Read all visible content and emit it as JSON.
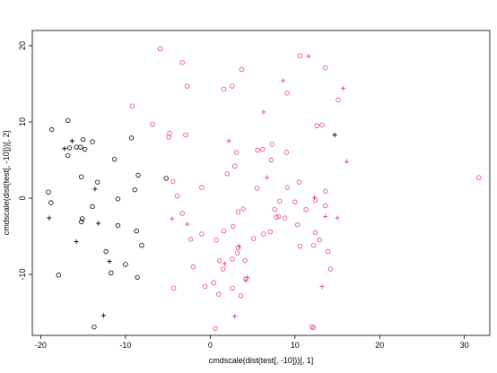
{
  "chart_data": {
    "type": "scatter",
    "xlabel": "cmdscale(dist(test[, -10]))[, 1]",
    "ylabel": "cmdscale(dist(test[, -10]))[, 2]",
    "xlim": [
      -21,
      33
    ],
    "ylim": [
      -18,
      22
    ],
    "xticks": [
      -20,
      -10,
      0,
      10,
      20,
      30
    ],
    "yticks": [
      -10,
      0,
      10,
      20
    ],
    "grid": false,
    "series": [
      {
        "color": "#000000",
        "marker": "circle",
        "points": [
          [
            -16.8,
            10.2
          ],
          [
            -18.7,
            9.0
          ],
          [
            -15.0,
            7.7
          ],
          [
            -13.9,
            7.4
          ],
          [
            -16.6,
            6.6
          ],
          [
            -15.8,
            6.7
          ],
          [
            -15.3,
            6.7
          ],
          [
            -14.8,
            6.4
          ],
          [
            -16.8,
            5.6
          ],
          [
            -11.3,
            5.1
          ],
          [
            -9.3,
            7.9
          ],
          [
            -8.5,
            3.0
          ],
          [
            -5.2,
            2.6
          ],
          [
            -15.2,
            2.8
          ],
          [
            -13.3,
            2.1
          ],
          [
            -8.9,
            1.1
          ],
          [
            -19.1,
            0.8
          ],
          [
            -10.9,
            -0.1
          ],
          [
            -18.8,
            -0.6
          ],
          [
            -13.9,
            -1.1
          ],
          [
            -15.1,
            -2.7
          ],
          [
            -15.2,
            -3.1
          ],
          [
            -10.9,
            -3.6
          ],
          [
            -8.7,
            -4.3
          ],
          [
            -8.1,
            -6.2
          ],
          [
            -12.3,
            -7.0
          ],
          [
            -10.0,
            -8.7
          ],
          [
            -11.7,
            -9.8
          ],
          [
            -17.9,
            -10.1
          ],
          [
            -8.6,
            -10.4
          ],
          [
            -13.7,
            -16.9
          ]
        ]
      },
      {
        "color": "#000000",
        "marker": "plus",
        "points": [
          [
            -16.3,
            7.5
          ],
          [
            -17.2,
            6.5
          ],
          [
            -13.6,
            1.2
          ],
          [
            -19.0,
            -2.6
          ],
          [
            -13.2,
            -3.3
          ],
          [
            -15.8,
            -5.7
          ],
          [
            -11.9,
            -8.3
          ],
          [
            -12.6,
            -15.4
          ],
          [
            14.7,
            8.3
          ]
        ]
      },
      {
        "color": "#e8456b",
        "marker": "circle",
        "points": [
          [
            -5.9,
            19.6
          ],
          [
            10.6,
            18.7
          ],
          [
            13.6,
            17.1
          ],
          [
            -3.3,
            17.8
          ],
          [
            3.7,
            16.9
          ],
          [
            -2.7,
            14.7
          ],
          [
            1.6,
            14.3
          ],
          [
            2.6,
            14.7
          ],
          [
            9.1,
            13.8
          ],
          [
            15.1,
            12.9
          ],
          [
            -9.2,
            12.1
          ],
          [
            12.6,
            9.5
          ],
          [
            13.2,
            9.6
          ],
          [
            -6.8,
            9.7
          ],
          [
            -4.8,
            8.5
          ],
          [
            -2.9,
            8.3
          ],
          [
            -4.9,
            8.0
          ],
          [
            7.3,
            7.1
          ],
          [
            5.6,
            6.3
          ],
          [
            6.2,
            6.4
          ],
          [
            9.0,
            6.0
          ],
          [
            3.1,
            6.0
          ],
          [
            7.2,
            5.0
          ],
          [
            2.9,
            4.2
          ],
          [
            2.0,
            3.2
          ],
          [
            31.7,
            2.7
          ],
          [
            10.5,
            2.1
          ],
          [
            -4.4,
            2.2
          ],
          [
            13.6,
            0.9
          ],
          [
            -1.0,
            1.4
          ],
          [
            5.5,
            1.3
          ],
          [
            9.1,
            1.4
          ],
          [
            -3.9,
            0.3
          ],
          [
            12.4,
            -0.3
          ],
          [
            8.2,
            -0.4
          ],
          [
            10.0,
            -0.5
          ],
          [
            7.6,
            -1.5
          ],
          [
            -3.3,
            -2.0
          ],
          [
            3.3,
            -1.8
          ],
          [
            3.9,
            -1.4
          ],
          [
            11.3,
            -1.5
          ],
          [
            13.6,
            -1.0
          ],
          [
            8.1,
            -2.4
          ],
          [
            7.8,
            -2.5
          ],
          [
            8.8,
            -2.6
          ],
          [
            10.3,
            -3.5
          ],
          [
            2.7,
            -3.7
          ],
          [
            1.6,
            -4.3
          ],
          [
            -1.0,
            -4.7
          ],
          [
            6.3,
            -4.7
          ],
          [
            7.1,
            -4.4
          ],
          [
            12.4,
            -4.5
          ],
          [
            -2.3,
            -5.4
          ],
          [
            0.7,
            -5.5
          ],
          [
            3.3,
            -6.5
          ],
          [
            5.1,
            -5.3
          ],
          [
            10.6,
            -6.3
          ],
          [
            12.9,
            -5.5
          ],
          [
            12.2,
            -6.2
          ],
          [
            13.9,
            -7.0
          ],
          [
            3.2,
            -7.2
          ],
          [
            -2.0,
            -9.0
          ],
          [
            1.1,
            -8.2
          ],
          [
            2.6,
            -8.0
          ],
          [
            4.1,
            -8.2
          ],
          [
            14.2,
            -9.3
          ],
          [
            1.5,
            -9.3
          ],
          [
            4.2,
            -10.6
          ],
          [
            0.4,
            -11.1
          ],
          [
            -0.6,
            -11.6
          ],
          [
            2.6,
            -11.8
          ],
          [
            -4.3,
            -11.8
          ],
          [
            1.0,
            -12.6
          ],
          [
            3.6,
            -12.8
          ],
          [
            0.6,
            -17.1
          ],
          [
            12.0,
            -16.9
          ],
          [
            12.2,
            -17.0
          ]
        ]
      },
      {
        "color": "#e8456b",
        "marker": "plus",
        "points": [
          [
            11.6,
            18.6
          ],
          [
            8.6,
            15.4
          ],
          [
            15.7,
            14.4
          ],
          [
            6.3,
            11.3
          ],
          [
            2.2,
            7.5
          ],
          [
            16.1,
            4.8
          ],
          [
            6.7,
            2.7
          ],
          [
            12.3,
            0.1
          ],
          [
            13.6,
            -2.4
          ],
          [
            15.0,
            -2.6
          ],
          [
            -4.5,
            -2.7
          ],
          [
            -2.7,
            -3.4
          ],
          [
            3.4,
            -6.3
          ],
          [
            1.7,
            -8.6
          ],
          [
            4.4,
            -10.4
          ],
          [
            4.2,
            -10.8
          ],
          [
            13.2,
            -11.6
          ],
          [
            2.9,
            -15.5
          ]
        ]
      }
    ]
  }
}
